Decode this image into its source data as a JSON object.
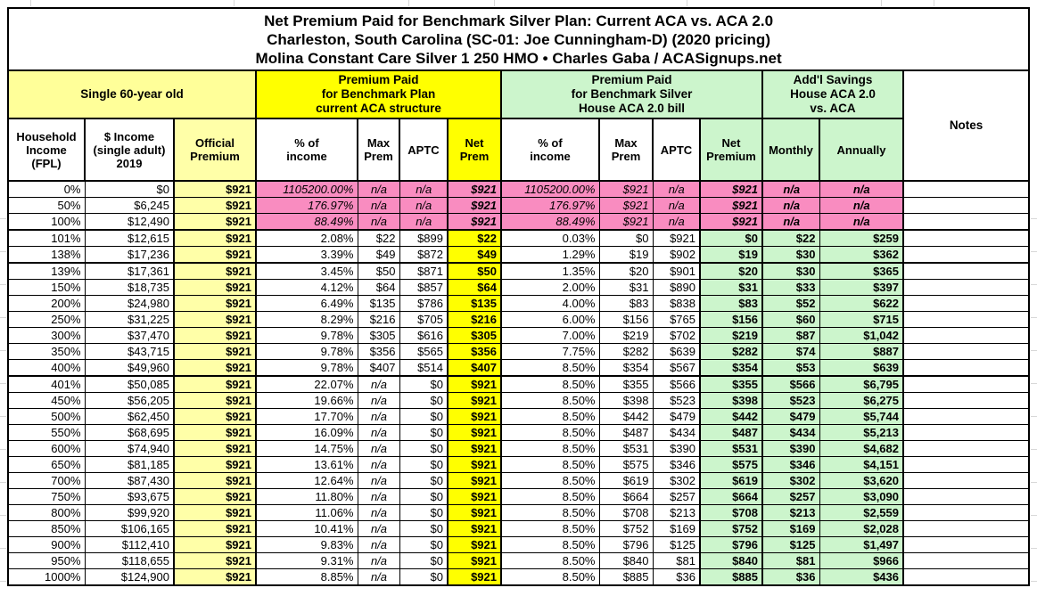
{
  "title": {
    "line1": "Net Premium Paid for Benchmark Silver Plan: Current ACA vs. ACA 2.0",
    "line2": "Charleston, South Carolina (SC-01: Joe Cunningham-D) (2020 pricing)",
    "line3": "Molina Constant Care Silver 1 250 HMO • Charles Gaba / ACASignups.net"
  },
  "bands": {
    "profile": "Single 60-year old",
    "aca": "Premium Paid\nfor Benchmark Plan\ncurrent ACA structure",
    "aca2": "Premium Paid\nfor Benchmark Silver\nHouse ACA 2.0 bill",
    "savings": "Add'l Savings\nHouse ACA 2.0\nvs. ACA",
    "notes": "Notes"
  },
  "column_headers": {
    "fpl": "Household\nIncome\n(FPL)",
    "income": "$ Income\n(single adult)\n2019",
    "official": "Official\nPremium",
    "pct_income": "% of\nincome",
    "max_prem": "Max\nPrem",
    "aptc": "APTC",
    "net_prem": "Net\nPrem",
    "pct_income2": "% of\nincome",
    "max_prem2": "Max\nPrem",
    "aptc2": "APTC",
    "net_prem2": "Net\nPremium",
    "monthly": "Monthly",
    "annually": "Annually"
  },
  "colors": {
    "light_yellow": "#ffff99",
    "pale_yellow": "#ffffa8",
    "bright_yellow": "#ffff00",
    "light_green": "#ccf5cc",
    "pink": "#f98cc0",
    "grid_gray": "#d8d8d8"
  },
  "table": {
    "col_keys": [
      "fpl",
      "income",
      "official",
      "pct_income",
      "max_prem",
      "aptc",
      "net_prem",
      "pct_income2",
      "max_prem2",
      "aptc2",
      "net_prem2",
      "monthly",
      "annually",
      "notes"
    ],
    "pink_row_count": 3,
    "thick_after": [
      "100%",
      "138%",
      "400%"
    ],
    "rows": [
      [
        "0%",
        "$0",
        "$921",
        "1105200.00%",
        "n/a",
        "n/a",
        "$921",
        "1105200.00%",
        "$921",
        "n/a",
        "$921",
        "n/a",
        "n/a"
      ],
      [
        "50%",
        "$6,245",
        "$921",
        "176.97%",
        "n/a",
        "n/a",
        "$921",
        "176.97%",
        "$921",
        "n/a",
        "$921",
        "n/a",
        "n/a"
      ],
      [
        "100%",
        "$12,490",
        "$921",
        "88.49%",
        "n/a",
        "n/a",
        "$921",
        "88.49%",
        "$921",
        "n/a",
        "$921",
        "n/a",
        "n/a"
      ],
      [
        "101%",
        "$12,615",
        "$921",
        "2.08%",
        "$22",
        "$899",
        "$22",
        "0.03%",
        "$0",
        "$921",
        "$0",
        "$22",
        "$259"
      ],
      [
        "138%",
        "$17,236",
        "$921",
        "3.39%",
        "$49",
        "$872",
        "$49",
        "1.29%",
        "$19",
        "$902",
        "$19",
        "$30",
        "$362"
      ],
      [
        "139%",
        "$17,361",
        "$921",
        "3.45%",
        "$50",
        "$871",
        "$50",
        "1.35%",
        "$20",
        "$901",
        "$20",
        "$30",
        "$365"
      ],
      [
        "150%",
        "$18,735",
        "$921",
        "4.12%",
        "$64",
        "$857",
        "$64",
        "2.00%",
        "$31",
        "$890",
        "$31",
        "$33",
        "$397"
      ],
      [
        "200%",
        "$24,980",
        "$921",
        "6.49%",
        "$135",
        "$786",
        "$135",
        "4.00%",
        "$83",
        "$838",
        "$83",
        "$52",
        "$622"
      ],
      [
        "250%",
        "$31,225",
        "$921",
        "8.29%",
        "$216",
        "$705",
        "$216",
        "6.00%",
        "$156",
        "$765",
        "$156",
        "$60",
        "$715"
      ],
      [
        "300%",
        "$37,470",
        "$921",
        "9.78%",
        "$305",
        "$616",
        "$305",
        "7.00%",
        "$219",
        "$702",
        "$219",
        "$87",
        "$1,042"
      ],
      [
        "350%",
        "$43,715",
        "$921",
        "9.78%",
        "$356",
        "$565",
        "$356",
        "7.75%",
        "$282",
        "$639",
        "$282",
        "$74",
        "$887"
      ],
      [
        "400%",
        "$49,960",
        "$921",
        "9.78%",
        "$407",
        "$514",
        "$407",
        "8.50%",
        "$354",
        "$567",
        "$354",
        "$53",
        "$639"
      ],
      [
        "401%",
        "$50,085",
        "$921",
        "22.07%",
        "n/a",
        "$0",
        "$921",
        "8.50%",
        "$355",
        "$566",
        "$355",
        "$566",
        "$6,795"
      ],
      [
        "450%",
        "$56,205",
        "$921",
        "19.66%",
        "n/a",
        "$0",
        "$921",
        "8.50%",
        "$398",
        "$523",
        "$398",
        "$523",
        "$6,275"
      ],
      [
        "500%",
        "$62,450",
        "$921",
        "17.70%",
        "n/a",
        "$0",
        "$921",
        "8.50%",
        "$442",
        "$479",
        "$442",
        "$479",
        "$5,744"
      ],
      [
        "550%",
        "$68,695",
        "$921",
        "16.09%",
        "n/a",
        "$0",
        "$921",
        "8.50%",
        "$487",
        "$434",
        "$487",
        "$434",
        "$5,213"
      ],
      [
        "600%",
        "$74,940",
        "$921",
        "14.75%",
        "n/a",
        "$0",
        "$921",
        "8.50%",
        "$531",
        "$390",
        "$531",
        "$390",
        "$4,682"
      ],
      [
        "650%",
        "$81,185",
        "$921",
        "13.61%",
        "n/a",
        "$0",
        "$921",
        "8.50%",
        "$575",
        "$346",
        "$575",
        "$346",
        "$4,151"
      ],
      [
        "700%",
        "$87,430",
        "$921",
        "12.64%",
        "n/a",
        "$0",
        "$921",
        "8.50%",
        "$619",
        "$302",
        "$619",
        "$302",
        "$3,620"
      ],
      [
        "750%",
        "$93,675",
        "$921",
        "11.80%",
        "n/a",
        "$0",
        "$921",
        "8.50%",
        "$664",
        "$257",
        "$664",
        "$257",
        "$3,090"
      ],
      [
        "800%",
        "$99,920",
        "$921",
        "11.06%",
        "n/a",
        "$0",
        "$921",
        "8.50%",
        "$708",
        "$213",
        "$708",
        "$213",
        "$2,559"
      ],
      [
        "850%",
        "$106,165",
        "$921",
        "10.41%",
        "n/a",
        "$0",
        "$921",
        "8.50%",
        "$752",
        "$169",
        "$752",
        "$169",
        "$2,028"
      ],
      [
        "900%",
        "$112,410",
        "$921",
        "9.83%",
        "n/a",
        "$0",
        "$921",
        "8.50%",
        "$796",
        "$125",
        "$796",
        "$125",
        "$1,497"
      ],
      [
        "950%",
        "$118,655",
        "$921",
        "9.31%",
        "n/a",
        "$0",
        "$921",
        "8.50%",
        "$840",
        "$81",
        "$840",
        "$81",
        "$966"
      ],
      [
        "1000%",
        "$124,900",
        "$921",
        "8.85%",
        "n/a",
        "$0",
        "$921",
        "8.50%",
        "$885",
        "$36",
        "$885",
        "$36",
        "$436"
      ]
    ]
  }
}
